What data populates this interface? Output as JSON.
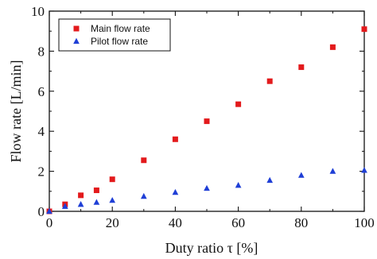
{
  "chart_data": {
    "type": "scatter",
    "title": "",
    "xlabel": "Duty ratio τ [%]",
    "ylabel": "Flow rate [L/min]",
    "xlim": [
      0,
      100
    ],
    "ylim": [
      0,
      10
    ],
    "xticks": [
      0,
      20,
      40,
      60,
      80,
      100
    ],
    "yticks": [
      0,
      2,
      4,
      6,
      8,
      10
    ],
    "x_tick_labels": [
      "0",
      "20",
      "40",
      "60",
      "80",
      "100"
    ],
    "y_tick_labels": [
      "0",
      "2",
      "4",
      "6",
      "8",
      "10"
    ],
    "grid": false,
    "legend_position": "top-left",
    "series": [
      {
        "name": "Main flow rate",
        "marker": "square",
        "color": "#e31a1c",
        "x": [
          0,
          5,
          10,
          15,
          20,
          30,
          40,
          50,
          60,
          70,
          80,
          90,
          100
        ],
        "y": [
          0.0,
          0.35,
          0.8,
          1.05,
          1.6,
          2.55,
          3.6,
          4.5,
          5.35,
          6.5,
          7.2,
          8.2,
          9.1
        ]
      },
      {
        "name": "Pilot flow rate",
        "marker": "triangle",
        "color": "#1f3fd6",
        "x": [
          0,
          5,
          10,
          15,
          20,
          30,
          40,
          50,
          60,
          70,
          80,
          90,
          100
        ],
        "y": [
          0.0,
          0.25,
          0.35,
          0.45,
          0.55,
          0.75,
          0.95,
          1.15,
          1.3,
          1.55,
          1.8,
          2.0,
          2.05
        ]
      }
    ]
  }
}
